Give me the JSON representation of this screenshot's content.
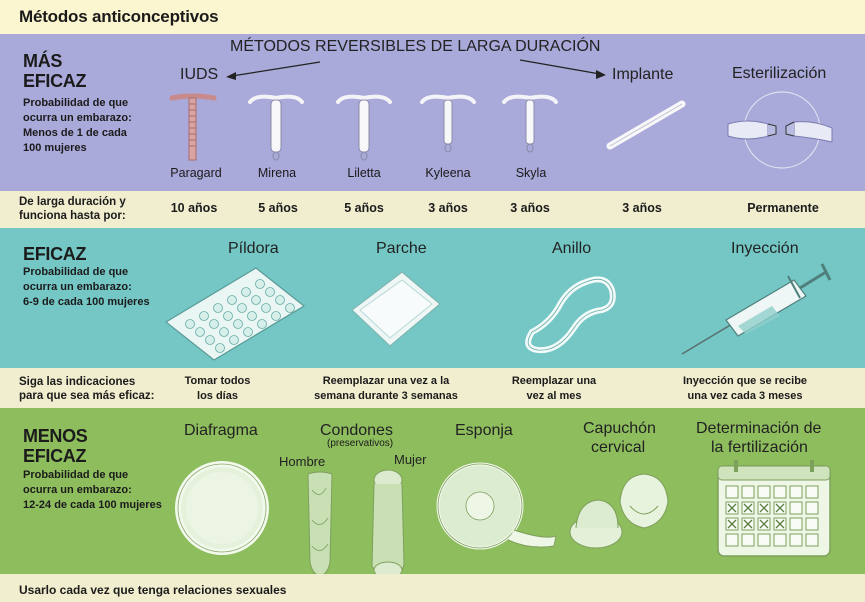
{
  "title": "Métodos anticonceptivos",
  "most": {
    "heading_1": "MÁS",
    "heading_2": "EFICAZ",
    "prob_1": "Probabilidad de que",
    "prob_2": "ocurra un embarazo:",
    "prob_3": "Menos de 1 de cada",
    "prob_4": "100 mujeres",
    "larc_title": "MÉTODOS REVERSIBLES DE LARGA DURACIÓN",
    "iuds_label": "IUDS",
    "implant_label": "Implante",
    "sterilization_label": "Esterilización",
    "devices": [
      "Paragard",
      "Mirena",
      "Liletta",
      "Kyleena",
      "Skyla"
    ],
    "row_label_1": "De larga duración y",
    "row_label_2": "funciona hasta por:",
    "durations": [
      "10 años",
      "5 años",
      "5 años",
      "3 años",
      "3 años",
      "3 años",
      "Permanente"
    ]
  },
  "effective": {
    "heading": "EFICAZ",
    "prob_1": "Probabilidad de que",
    "prob_2": "ocurra un embarazo:",
    "prob_3": "6-9 de cada 100 mujeres",
    "methods": [
      "Píldora",
      "Parche",
      "Anillo",
      "Inyección"
    ],
    "row_label_1": "Siga las indicaciones",
    "row_label_2": "para que sea más eficaz:",
    "instr_pill_1": "Tomar todos",
    "instr_pill_2": "los días",
    "instr_patch_1": "Reemplazar una vez a la",
    "instr_patch_2": "semana durante 3 semanas",
    "instr_ring_1": "Reemplazar una",
    "instr_ring_2": "vez al mes",
    "instr_inj_1": "Inyección que se recibe",
    "instr_inj_2": "una vez cada 3 meses"
  },
  "less": {
    "heading_1": "MENOS",
    "heading_2": "EFICAZ",
    "prob_1": "Probabilidad de que",
    "prob_2": "ocurra un embarazo:",
    "prob_3": "12-24 de cada 100 mujeres",
    "diaphragm": "Diafragma",
    "condoms": "Condones",
    "condoms_sub": "(preservativos)",
    "male": "Hombre",
    "female": "Mujer",
    "sponge": "Esponja",
    "cap_1": "Capuchón",
    "cap_2": "cervical",
    "fam_1": "Determinación de",
    "fam_2": "la fertilización",
    "row_label": "Usarlo cada vez que tenga relaciones sexuales"
  },
  "colors": {
    "most_bg": "#a9a9da",
    "effective_bg": "#74c7c5",
    "less_bg": "#8ebd5e",
    "row_bg": "#f1eecf",
    "title_bg": "#fbf6cf"
  }
}
